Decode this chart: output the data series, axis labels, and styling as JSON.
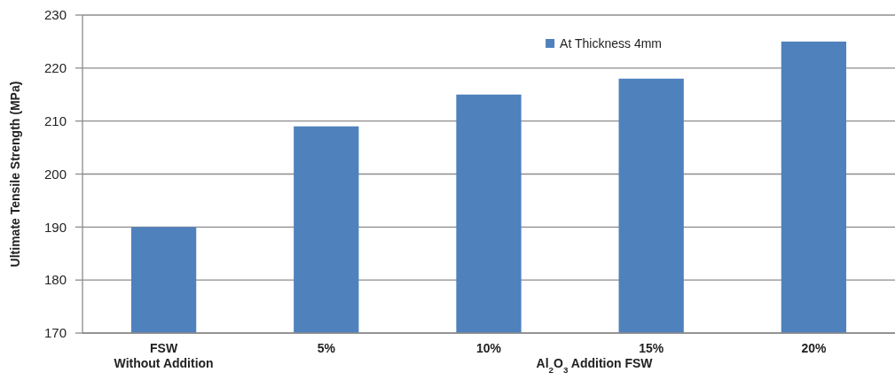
{
  "chart_data": {
    "type": "bar",
    "categories": [
      "FSW\nWithout Addition",
      "5%",
      "10%",
      "15%",
      "20%"
    ],
    "series": [
      {
        "name": "At Thickness 4mm",
        "color": "#4f81bd",
        "values": [
          190,
          209,
          215,
          218,
          225
        ]
      }
    ],
    "xlabel": "Al$_{2}$O$_{3}$ Addition FSW",
    "ylabel": "Ultimate Tensile Strength (MPa)",
    "ylim": [
      170,
      230
    ],
    "yticks": [
      170,
      180,
      190,
      200,
      210,
      220,
      230
    ],
    "grid": "y",
    "legend": "top right"
  }
}
